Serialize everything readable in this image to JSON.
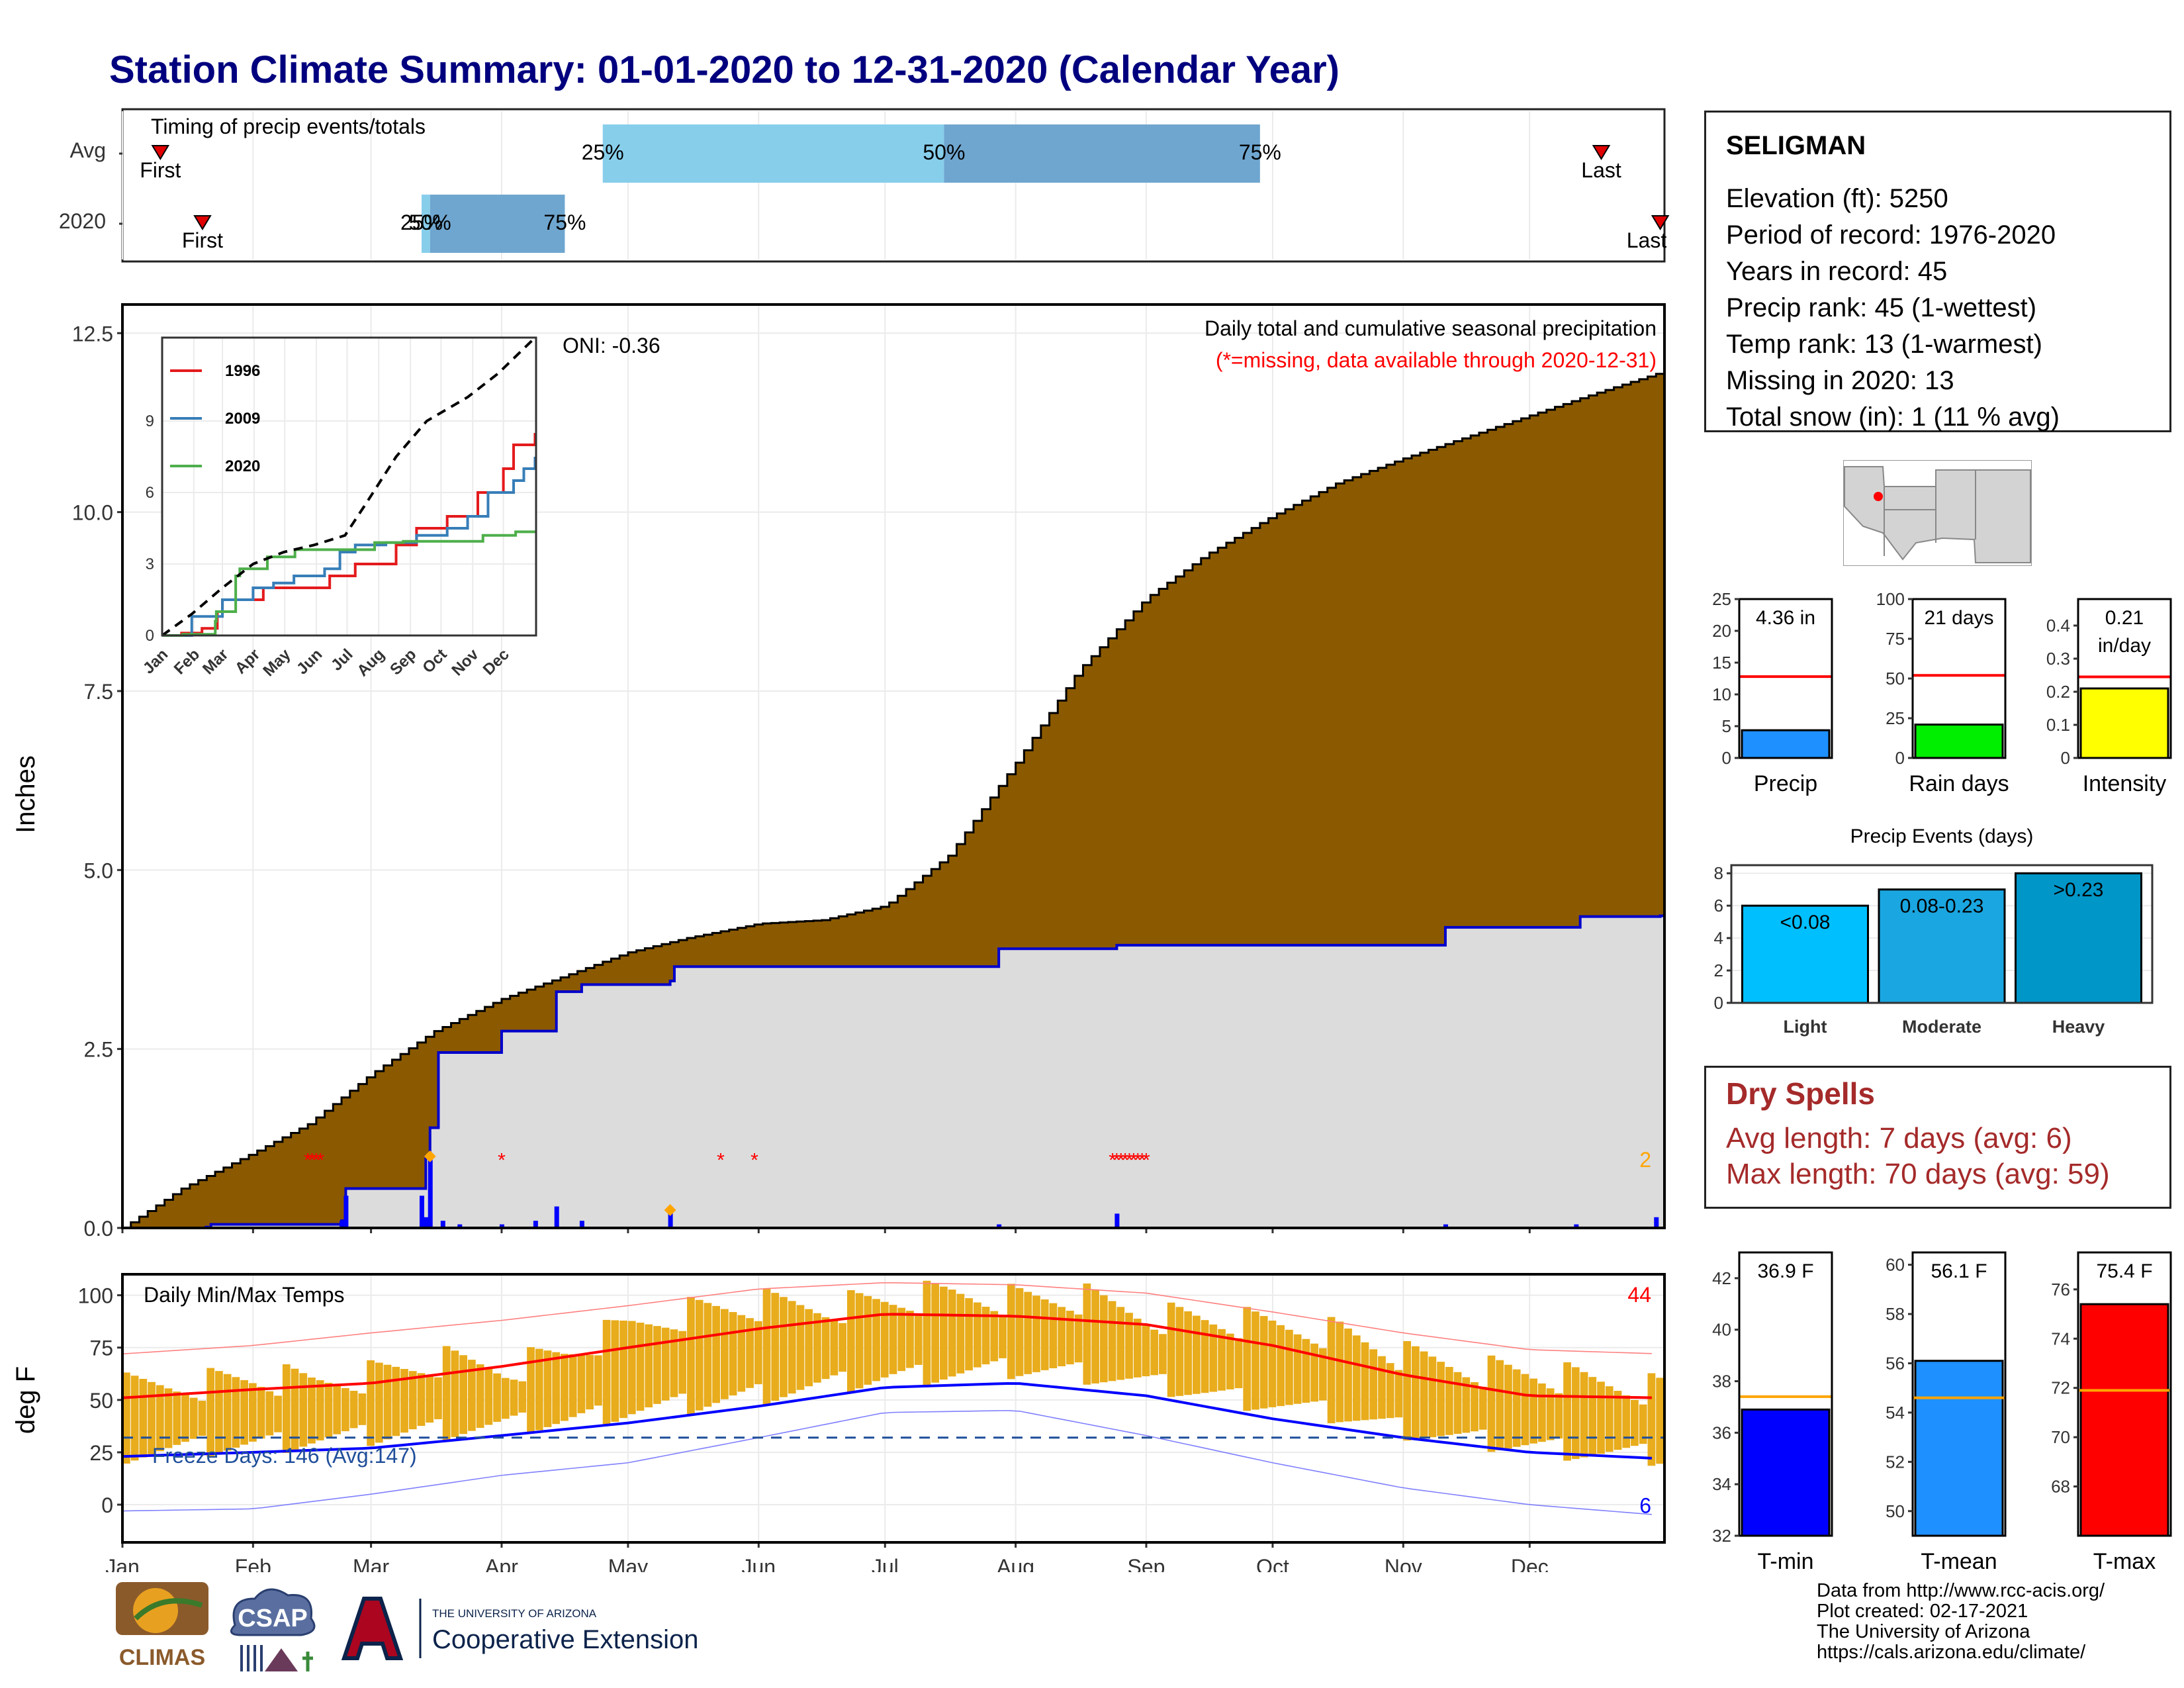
{
  "page": {
    "title": "Station Climate Summary: 01-01-2020 to 12-31-2020 (Calendar Year)"
  },
  "timing_panel": {
    "title": "Timing of precip events/totals",
    "rows": [
      "Avg",
      "2020"
    ],
    "avg": {
      "first_label": "First",
      "last_label": "Last",
      "q25": "25%",
      "q50": "50%",
      "q75": "75%",
      "first_doy": 10,
      "last_doy": 352,
      "q25_doy": 115,
      "q50_doy": 196,
      "q75_doy": 271
    },
    "y2020": {
      "first_label": "First",
      "last_label": "Last",
      "q25": "25%",
      "q50": "50%",
      "q75": "75%",
      "first_doy": 20,
      "last_doy": 366,
      "q25_doy": 72,
      "q50_doy": 74,
      "q75_doy": 106
    }
  },
  "station": {
    "name": "SELIGMAN",
    "lines": [
      "Elevation (ft): 5250",
      "Period of record: 1976-2020",
      "Years in record: 45",
      "Precip rank: 45 (1-wettest)",
      "Temp rank: 13 (1-warmest)",
      "Missing in 2020: 13",
      "Total snow (in): 1 (11 % avg)"
    ]
  },
  "dry_spells": {
    "title": "Dry Spells",
    "avg_length": "Avg length: 7 days (avg: 6)",
    "max_length": "Max length: 70 days (avg: 59)"
  },
  "credits": [
    "Data from http://www.rcc-acis.org/",
    "Plot created: 02-17-2021",
    "The University of Arizona",
    "https://cals.arizona.edu/climate/"
  ],
  "logos": {
    "climas": "CLIMAS",
    "csap": "CSAP",
    "ua_small": "THE UNIVERSITY OF ARIZONA",
    "ua_big": "Cooperative Extension"
  },
  "colors": {
    "title": "#00007f",
    "avg_cum_fill": "#8b5a00",
    "obs_cum_fill": "#dcdcdc",
    "obs_cum_line": "#0000cc",
    "temp_bar": "#e8ac1c",
    "tmax_line": "#ff0000",
    "tmin_line": "#0000ff"
  },
  "chart_data": [
    {
      "id": "precip",
      "type": "area",
      "title": "Daily total and cumulative seasonal precipitation",
      "subtitle": "(*=missing, data available through 2020-12-31)",
      "annotation": "ONI: -0.36",
      "corner_label": "2",
      "ylabel": "Inches",
      "ylim": [
        0,
        12.9
      ],
      "yticks": [
        0.0,
        2.5,
        5.0,
        7.5,
        10.0,
        12.5
      ],
      "ytick_labels": [
        "0.0",
        "2.5",
        "5.0",
        "7.5",
        "10.0",
        "12.5"
      ],
      "months": [
        "Jan",
        "Feb",
        "Mar",
        "Apr",
        "May",
        "Jun",
        "Jul",
        "Aug",
        "Sep",
        "Oct",
        "Nov",
        "Dec"
      ],
      "month_start_doy": [
        1,
        32,
        60,
        91,
        121,
        152,
        182,
        213,
        244,
        274,
        305,
        335
      ],
      "avg_cumulative": {
        "doy": [
          1,
          15,
          32,
          45,
          60,
          75,
          91,
          105,
          121,
          135,
          152,
          167,
          182,
          197,
          213,
          228,
          244,
          258,
          274,
          289,
          305,
          320,
          335,
          350,
          366
        ],
        "inches": [
          0.0,
          0.55,
          1.05,
          1.45,
          2.15,
          2.75,
          3.2,
          3.5,
          3.85,
          4.05,
          4.25,
          4.3,
          4.5,
          5.2,
          6.5,
          7.8,
          8.8,
          9.4,
          9.95,
          10.4,
          10.75,
          11.05,
          11.35,
          11.65,
          11.95
        ]
      },
      "obs_cumulative": {
        "doy": [
          1,
          21,
          22,
          53,
          54,
          72,
          73,
          74,
          76,
          91,
          104,
          110,
          131,
          132,
          182,
          208,
          209,
          236,
          237,
          284,
          314,
          315,
          346,
          347,
          366
        ],
        "inches": [
          0.0,
          0.0,
          0.05,
          0.1,
          0.55,
          0.55,
          1.0,
          1.4,
          2.45,
          2.75,
          3.3,
          3.4,
          3.45,
          3.65,
          3.65,
          3.65,
          3.9,
          3.9,
          3.95,
          3.95,
          3.95,
          4.2,
          4.2,
          4.35,
          4.36
        ]
      },
      "daily_bars": {
        "doy": [
          21,
          53,
          54,
          72,
          73,
          74,
          77,
          81,
          91,
          99,
          104,
          110,
          131,
          209,
          237,
          315,
          346,
          365
        ],
        "inches": [
          0.03,
          0.1,
          0.45,
          0.45,
          0.15,
          0.95,
          0.1,
          0.05,
          0.05,
          0.1,
          0.3,
          0.1,
          0.25,
          0.05,
          0.2,
          0.05,
          0.05,
          0.15
        ]
      },
      "missing_days": [
        45,
        46,
        47,
        48,
        91,
        143,
        151,
        236,
        237,
        238,
        239,
        240,
        241,
        242,
        243,
        244
      ],
      "snow_days": [
        74,
        131
      ]
    },
    {
      "id": "inset_cumulative",
      "type": "line",
      "yticks": [
        0,
        3,
        6,
        9
      ],
      "months": [
        "Jan",
        "Feb",
        "Mar",
        "Apr",
        "May",
        "Jun",
        "Jul",
        "Aug",
        "Sep",
        "Oct",
        "Nov",
        "Dec"
      ],
      "month_start_doy": [
        1,
        32,
        60,
        91,
        121,
        152,
        182,
        213,
        244,
        274,
        305,
        335
      ],
      "ylim": [
        0,
        12.5
      ],
      "series": [
        {
          "name": "1996",
          "color": "#e41a1c",
          "doy": [
            1,
            20,
            40,
            55,
            60,
            100,
            150,
            165,
            190,
            230,
            250,
            280,
            300,
            310,
            335,
            345,
            366
          ],
          "inches": [
            0,
            0.1,
            0.3,
            1.0,
            1.5,
            2.0,
            2.0,
            2.5,
            3.0,
            3.8,
            4.5,
            5.0,
            5.0,
            6.0,
            7.0,
            8.0,
            8.5
          ]
        },
        {
          "name": "2009",
          "color": "#377eb8",
          "doy": [
            1,
            30,
            60,
            90,
            110,
            130,
            160,
            175,
            190,
            220,
            250,
            280,
            300,
            320,
            345,
            355,
            366
          ],
          "inches": [
            0,
            0.8,
            1.5,
            2.0,
            2.2,
            2.5,
            2.8,
            3.5,
            3.8,
            3.9,
            4.2,
            4.5,
            5.0,
            6.0,
            6.5,
            7.0,
            7.5
          ]
        },
        {
          "name": "2020",
          "color": "#4daf4a",
          "doy": [
            1,
            21,
            53,
            54,
            73,
            77,
            104,
            131,
            209,
            237,
            315,
            347,
            366
          ],
          "inches": [
            0,
            0.05,
            0.6,
            1.0,
            2.5,
            2.8,
            3.3,
            3.6,
            3.9,
            3.95,
            4.2,
            4.35,
            4.36
          ]
        },
        {
          "name": "wettest",
          "color": "#000000",
          "dashed": true,
          "doy": [
            1,
            30,
            60,
            90,
            120,
            150,
            180,
            200,
            230,
            260,
            300,
            330,
            366
          ],
          "inches": [
            0,
            0.9,
            2.0,
            3.0,
            3.5,
            3.8,
            4.2,
            5.5,
            7.5,
            9.0,
            10.0,
            11.0,
            12.5
          ]
        }
      ]
    },
    {
      "id": "temps",
      "type": "line",
      "title": "Daily Min/Max Temps",
      "ylabel": "deg F",
      "ylim": [
        -18,
        110
      ],
      "yticks": [
        0,
        25,
        50,
        75,
        100
      ],
      "freeze_label": "Freeze Days: 146 (Avg:147)",
      "freeze_threshold": 32,
      "hot_count": "44",
      "cold_count": "6",
      "months": [
        "Jan",
        "Feb",
        "Mar",
        "Apr",
        "May",
        "Jun",
        "Jul",
        "Aug",
        "Sep",
        "Oct",
        "Nov",
        "Dec"
      ],
      "month_start_doy": [
        1,
        32,
        60,
        91,
        121,
        152,
        182,
        213,
        244,
        274,
        305,
        335
      ],
      "avg_tmax": {
        "doy": [
          1,
          32,
          60,
          91,
          121,
          152,
          182,
          213,
          244,
          274,
          305,
          335,
          366
        ],
        "deg": [
          51,
          55,
          58,
          66,
          75,
          84,
          91,
          90,
          86,
          76,
          62,
          52,
          51
        ]
      },
      "avg_tmin": {
        "doy": [
          1,
          32,
          60,
          91,
          121,
          152,
          182,
          213,
          244,
          274,
          305,
          335,
          366
        ],
        "deg": [
          23,
          25,
          27,
          33,
          39,
          47,
          56,
          58,
          52,
          41,
          32,
          25,
          22
        ]
      },
      "record_tmax": {
        "doy": [
          1,
          32,
          60,
          91,
          121,
          152,
          182,
          213,
          244,
          274,
          305,
          335,
          366
        ],
        "deg": [
          72,
          76,
          82,
          88,
          95,
          103,
          106,
          105,
          101,
          92,
          82,
          74,
          72
        ]
      },
      "record_tmin": {
        "doy": [
          1,
          32,
          60,
          91,
          121,
          152,
          182,
          213,
          244,
          274,
          305,
          335,
          366
        ],
        "deg": [
          -3,
          -2,
          5,
          14,
          20,
          32,
          44,
          45,
          33,
          20,
          8,
          0,
          -5
        ]
      },
      "obs_tmax": {
        "doy": [
          1,
          15,
          32,
          45,
          60,
          75,
          91,
          105,
          121,
          135,
          152,
          167,
          182,
          197,
          213,
          228,
          244,
          258,
          274,
          289,
          305,
          320,
          335,
          350,
          366
        ],
        "deg": [
          55,
          57,
          60,
          58,
          62,
          68,
          65,
          72,
          85,
          92,
          95,
          94,
          97,
          100,
          98,
          98,
          90,
          88,
          85,
          82,
          70,
          65,
          62,
          58,
          55
        ]
      },
      "obs_tmin": {
        "doy": [
          1,
          15,
          32,
          45,
          60,
          75,
          91,
          105,
          121,
          135,
          152,
          167,
          182,
          197,
          213,
          228,
          244,
          258,
          274,
          289,
          305,
          320,
          335,
          350,
          366
        ],
        "deg": [
          22,
          24,
          26,
          28,
          30,
          33,
          35,
          37,
          42,
          45,
          50,
          54,
          58,
          60,
          62,
          60,
          55,
          50,
          45,
          40,
          33,
          28,
          25,
          22,
          20
        ]
      }
    },
    {
      "id": "season_precip",
      "type": "bar",
      "categories": [
        "Precip"
      ],
      "values": [
        4.36
      ],
      "label": "4.36 in",
      "average": 12.8,
      "yticks": [
        0,
        5,
        10,
        15,
        20,
        25
      ],
      "ylim": [
        0,
        25
      ],
      "color": "#1e90ff"
    },
    {
      "id": "rain_days",
      "type": "bar",
      "categories": [
        "Rain days"
      ],
      "values": [
        21
      ],
      "label": "21 days",
      "average": 52,
      "yticks": [
        0,
        25,
        50,
        75,
        100
      ],
      "ylim": [
        0,
        100
      ],
      "color": "#00ee00"
    },
    {
      "id": "intensity",
      "type": "bar",
      "categories": [
        "Intensity"
      ],
      "values": [
        0.21
      ],
      "label": "0.21",
      "label2": "in/day",
      "average": 0.245,
      "yticks": [
        0.0,
        0.1,
        0.2,
        0.3,
        0.4
      ],
      "ylim": [
        0,
        0.48
      ],
      "color": "#ffff00"
    },
    {
      "id": "precip_events",
      "type": "bar",
      "title": "Precip Events (days)",
      "categories": [
        "Light",
        "Moderate",
        "Heavy"
      ],
      "values": [
        6,
        7,
        8
      ],
      "labels": [
        "<0.08",
        "0.08-0.23",
        ">0.23"
      ],
      "colors": [
        "#00bfff",
        "#1aa6e0",
        "#0096c8"
      ],
      "yticks": [
        0,
        2,
        4,
        6,
        8
      ],
      "ylim": [
        0,
        8.5
      ]
    },
    {
      "id": "tmin",
      "type": "bar",
      "categories": [
        "T-min"
      ],
      "values": [
        36.9
      ],
      "label": "36.9 F",
      "average": 37.4,
      "yticks": [
        32,
        34,
        36,
        38,
        40,
        42
      ],
      "ylim": [
        32,
        43
      ],
      "color": "#0000ff"
    },
    {
      "id": "tmean",
      "type": "bar",
      "categories": [
        "T-mean"
      ],
      "values": [
        56.1
      ],
      "label": "56.1 F",
      "average": 54.6,
      "yticks": [
        50,
        52,
        54,
        56,
        58,
        60
      ],
      "ylim": [
        49,
        60.5
      ],
      "color": "#1e90ff"
    },
    {
      "id": "tmax",
      "type": "bar",
      "categories": [
        "T-max"
      ],
      "values": [
        75.4
      ],
      "label": "75.4 F",
      "average": 71.9,
      "yticks": [
        68,
        70,
        72,
        74,
        76
      ],
      "ylim": [
        66,
        77.5
      ],
      "color": "#ff0000"
    }
  ]
}
